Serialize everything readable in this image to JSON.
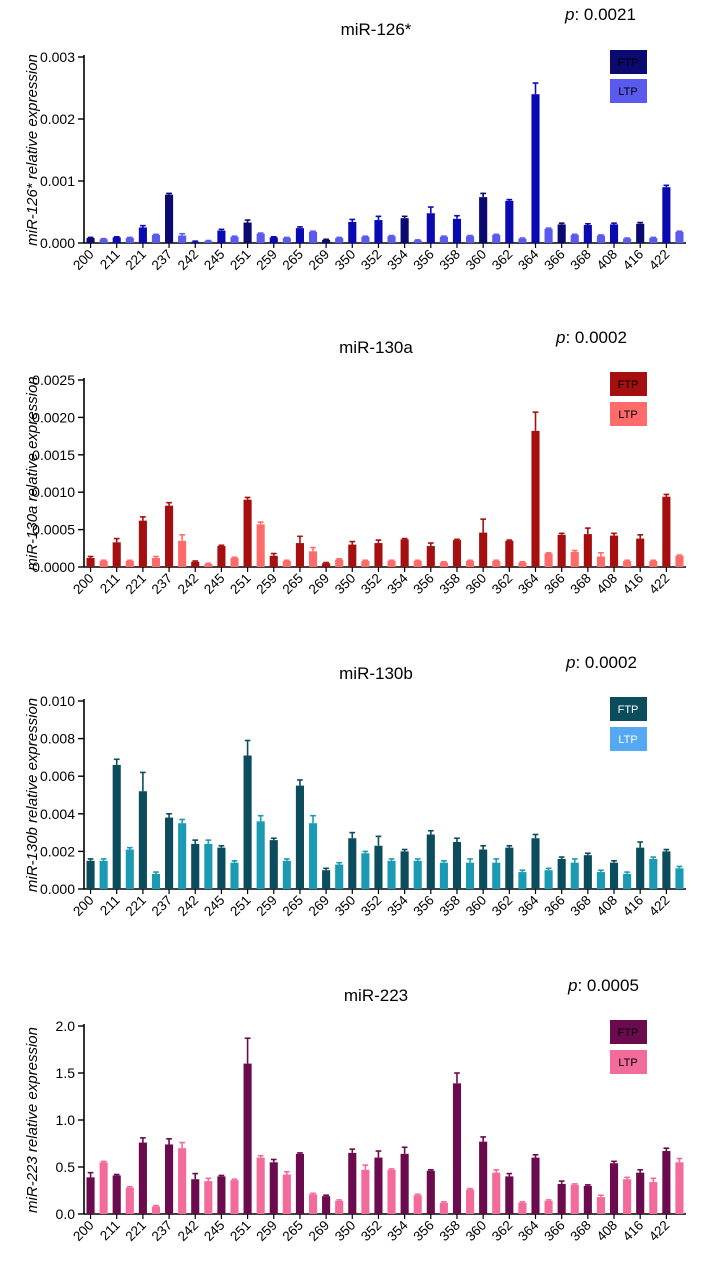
{
  "colors": {
    "miR126_ftp": "#0a0ab3",
    "miR126_ftp_dark": "#0a0a70",
    "miR126_ltp": "#5a5aee",
    "miR130a_ftp": "#a50f0f",
    "miR130a_ltp": "#ff6b6b",
    "miR130b_ftp": "#0b4d5c",
    "miR130b_ltp": "#1a9bb3",
    "miR130b_legend_ltp": "#55a8f2",
    "miR223_ftp": "#6b0a4d",
    "miR223_ltp": "#f26b9b"
  },
  "chart_data": [
    {
      "type": "bar",
      "title": "miR-126*",
      "p_label": "p",
      "p_value": ": 0.0021",
      "ylabel": "miR-126* relative expression",
      "ylim": [
        0,
        0.003
      ],
      "yticks": [
        "0.000",
        "0.001",
        "0.002",
        "0.003"
      ],
      "ytick_values": [
        0,
        0.001,
        0.002,
        0.003
      ],
      "categories": [
        "200",
        "211",
        "221",
        "237",
        "242",
        "245",
        "251",
        "259",
        "265",
        "269",
        "350",
        "352",
        "354",
        "356",
        "358",
        "360",
        "362",
        "364",
        "366",
        "368",
        "408",
        "416",
        "422"
      ],
      "legend": [
        "FTP",
        "LTP"
      ],
      "series": [
        {
          "name": "FTP",
          "values": [
            8e-05,
            9e-05,
            0.00025,
            0.00078,
            2e-05,
            0.0002,
            0.00033,
            9e-05,
            0.00024,
            5e-05,
            0.00034,
            0.00037,
            0.0004,
            0.00048,
            0.00039,
            0.00074,
            0.00068,
            0.0024,
            0.0003,
            0.00029,
            0.0003,
            0.00031,
            0.0009
          ],
          "errors": [
            1e-05,
            1e-05,
            3e-05,
            2e-05,
            1e-05,
            2e-05,
            4e-05,
            1e-05,
            2e-05,
            1e-05,
            4e-05,
            6e-05,
            3e-05,
            0.0001,
            5e-05,
            6e-05,
            2e-05,
            0.00018,
            2e-05,
            2e-05,
            2e-05,
            2e-05,
            3e-05
          ]
        },
        {
          "name": "LTP",
          "values": [
            6e-05,
            8e-05,
            0.00013,
            0.00012,
            3e-05,
            0.0001,
            0.00015,
            8e-05,
            0.00018,
            8e-05,
            0.0001,
            0.00011,
            4e-05,
            0.0001,
            0.00011,
            0.00013,
            7e-05,
            0.00023,
            0.00013,
            0.00012,
            7e-05,
            8e-05,
            0.00018
          ],
          "errors": [
            1e-05,
            1e-05,
            1e-05,
            3e-05,
            1e-05,
            1e-05,
            1e-05,
            1e-05,
            1e-05,
            1e-05,
            1e-05,
            1e-05,
            1e-05,
            1e-05,
            1e-05,
            1e-05,
            1e-05,
            1e-05,
            1e-05,
            1e-05,
            1e-05,
            1e-05,
            1e-05
          ]
        }
      ]
    },
    {
      "type": "bar",
      "title": "miR-130a",
      "p_label": "p",
      "p_value": ": 0.0002",
      "ylabel": "miR-130a relative expression",
      "ylim": [
        0,
        0.0025
      ],
      "yticks": [
        "0.0000",
        "0.0005",
        "0.0010",
        "0.0015",
        "0.0020",
        "0.0025"
      ],
      "ytick_values": [
        0,
        0.0005,
        0.001,
        0.0015,
        0.002,
        0.0025
      ],
      "categories": [
        "200",
        "211",
        "221",
        "237",
        "242",
        "245",
        "251",
        "259",
        "265",
        "269",
        "350",
        "352",
        "354",
        "356",
        "358",
        "360",
        "362",
        "364",
        "366",
        "368",
        "408",
        "416",
        "422"
      ],
      "legend": [
        "FTP",
        "LTP"
      ],
      "series": [
        {
          "name": "FTP",
          "values": [
            0.00012,
            0.00033,
            0.00062,
            0.00082,
            7e-05,
            0.00028,
            0.0009,
            0.00015,
            0.00032,
            5e-05,
            0.0003,
            0.00032,
            0.00037,
            0.00028,
            0.00036,
            0.00046,
            0.00035,
            0.00182,
            0.00043,
            0.00044,
            0.00042,
            0.00038,
            0.00094
          ],
          "errors": [
            2e-05,
            5e-05,
            5e-05,
            4e-05,
            1e-05,
            1e-05,
            3e-05,
            3e-05,
            9e-05,
            1e-05,
            4e-05,
            4e-05,
            1e-05,
            4e-05,
            1e-05,
            0.00018,
            1e-05,
            0.00025,
            2e-05,
            8e-05,
            3e-05,
            5e-05,
            3e-05
          ]
        },
        {
          "name": "LTP",
          "values": [
            8e-05,
            8e-05,
            0.00012,
            0.00035,
            4e-05,
            0.00012,
            0.00057,
            8e-05,
            0.00021,
            0.0001,
            8e-05,
            8e-05,
            8e-05,
            6e-05,
            8e-05,
            8e-05,
            6e-05,
            0.00018,
            0.0002,
            0.00014,
            8e-05,
            8e-05,
            0.00015
          ],
          "errors": [
            1e-05,
            1e-05,
            2e-05,
            8e-05,
            1e-05,
            1e-05,
            3e-05,
            1e-05,
            5e-05,
            1e-05,
            1e-05,
            1e-05,
            1e-05,
            1e-05,
            1e-05,
            1e-05,
            1e-05,
            1e-05,
            2e-05,
            5e-05,
            1e-05,
            1e-05,
            1e-05
          ]
        }
      ]
    },
    {
      "type": "bar",
      "title": "miR-130b",
      "p_label": "p",
      "p_value": ": 0.0002",
      "ylabel": "miR-130b relative expression",
      "ylim": [
        0,
        0.01
      ],
      "yticks": [
        "0.000",
        "0.002",
        "0.004",
        "0.006",
        "0.008",
        "0.010"
      ],
      "ytick_values": [
        0,
        0.002,
        0.004,
        0.006,
        0.008,
        0.01
      ],
      "categories": [
        "200",
        "211",
        "221",
        "237",
        "242",
        "245",
        "251",
        "259",
        "265",
        "269",
        "350",
        "352",
        "354",
        "356",
        "358",
        "360",
        "362",
        "364",
        "366",
        "368",
        "408",
        "416",
        "422"
      ],
      "legend": [
        "FTP",
        "LTP"
      ],
      "series": [
        {
          "name": "FTP",
          "values": [
            0.0015,
            0.0066,
            0.0052,
            0.0038,
            0.0024,
            0.0022,
            0.0071,
            0.0026,
            0.0055,
            0.001,
            0.0027,
            0.0023,
            0.002,
            0.0029,
            0.0025,
            0.0021,
            0.0022,
            0.0027,
            0.0016,
            0.0018,
            0.0014,
            0.0022,
            0.002
          ],
          "errors": [
            0.0001,
            0.0003,
            0.001,
            0.0002,
            0.0002,
            0.0001,
            0.0008,
            0.0001,
            0.0003,
            0.0001,
            0.0003,
            0.0005,
            0.0001,
            0.0002,
            0.0002,
            0.0002,
            0.0001,
            0.0002,
            0.0001,
            0.0001,
            0.0001,
            0.0003,
            0.0001
          ]
        },
        {
          "name": "LTP",
          "values": [
            0.0015,
            0.0021,
            0.0008,
            0.0035,
            0.0024,
            0.0014,
            0.0036,
            0.0015,
            0.0035,
            0.0013,
            0.0019,
            0.0015,
            0.0015,
            0.0014,
            0.0014,
            0.0014,
            0.0009,
            0.001,
            0.0014,
            0.0009,
            0.0008,
            0.0016,
            0.0011
          ],
          "errors": [
            0.0001,
            0.0001,
            0.0001,
            0.0002,
            0.0002,
            0.0001,
            0.0003,
            0.0001,
            0.0004,
            0.0001,
            0.0001,
            0.0001,
            0.0001,
            0.0001,
            0.0002,
            0.0002,
            0.0001,
            0.0001,
            0.0002,
            0.0001,
            0.0001,
            0.0001,
            0.0001
          ]
        }
      ]
    },
    {
      "type": "bar",
      "title": "miR-223",
      "p_label": "p",
      "p_value": ": 0.0005",
      "ylabel": "miR-223 relative expression",
      "ylim": [
        0,
        2.0
      ],
      "yticks": [
        "0.0",
        "0.5",
        "1.0",
        "1.5",
        "2.0"
      ],
      "ytick_values": [
        0,
        0.5,
        1.0,
        1.5,
        2.0
      ],
      "categories": [
        "200",
        "211",
        "221",
        "237",
        "242",
        "245",
        "251",
        "259",
        "265",
        "269",
        "350",
        "352",
        "354",
        "356",
        "358",
        "360",
        "362",
        "364",
        "366",
        "368",
        "408",
        "416",
        "422"
      ],
      "legend": [
        "FTP",
        "LTP"
      ],
      "series": [
        {
          "name": "FTP",
          "values": [
            0.39,
            0.41,
            0.76,
            0.74,
            0.37,
            0.4,
            1.6,
            0.55,
            0.64,
            0.19,
            0.65,
            0.6,
            0.64,
            0.46,
            1.39,
            0.77,
            0.4,
            0.6,
            0.32,
            0.3,
            0.54,
            0.44,
            0.67
          ],
          "errors": [
            0.05,
            0.01,
            0.05,
            0.06,
            0.06,
            0.01,
            0.27,
            0.03,
            0.01,
            0.01,
            0.04,
            0.07,
            0.07,
            0.01,
            0.11,
            0.05,
            0.03,
            0.03,
            0.03,
            0.01,
            0.02,
            0.03,
            0.03
          ]
        },
        {
          "name": "LTP",
          "values": [
            0.55,
            0.28,
            0.08,
            0.7,
            0.35,
            0.36,
            0.6,
            0.42,
            0.21,
            0.14,
            0.47,
            0.47,
            0.2,
            0.12,
            0.26,
            0.44,
            0.12,
            0.14,
            0.31,
            0.18,
            0.37,
            0.34,
            0.55
          ],
          "errors": [
            0.01,
            0.01,
            0.01,
            0.06,
            0.03,
            0.01,
            0.02,
            0.03,
            0.01,
            0.01,
            0.05,
            0.01,
            0.01,
            0.01,
            0.01,
            0.03,
            0.01,
            0.01,
            0.01,
            0.02,
            0.02,
            0.04,
            0.04
          ]
        }
      ]
    }
  ]
}
